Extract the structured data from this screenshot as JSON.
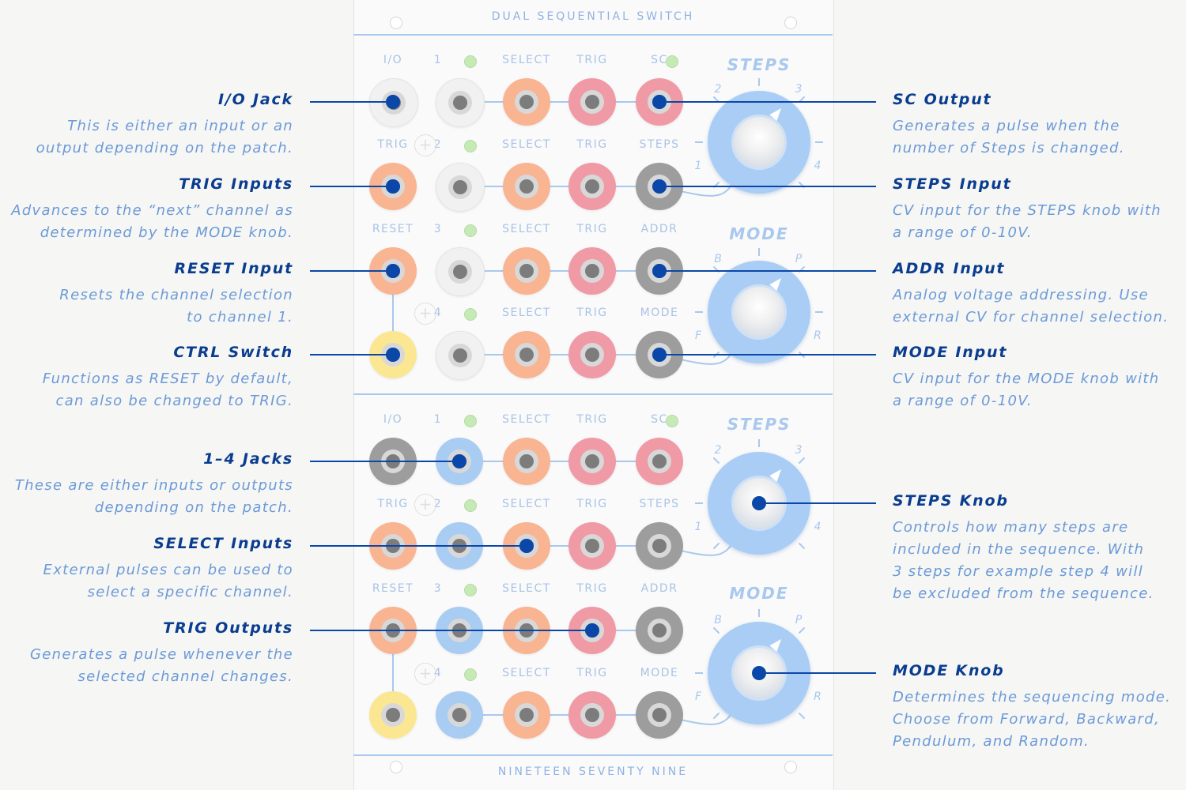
{
  "panel": {
    "title": "DUAL SEQUENTIAL SWITCH",
    "footer": "NINETEEN SEVENTY NINE"
  },
  "colors": {
    "accent": "#0b47a8",
    "description": "#6b9ad8",
    "panel_label": "#a9c3e6"
  },
  "sections": [
    {
      "rows": [
        [
          "I/O",
          "1",
          "SELECT",
          "TRIG",
          "SC"
        ],
        [
          "TRIG",
          "2",
          "SELECT",
          "TRIG",
          "STEPS"
        ],
        [
          "RESET",
          "3",
          "SELECT",
          "TRIG",
          "ADDR"
        ],
        [
          "",
          "4",
          "SELECT",
          "TRIG",
          "MODE"
        ]
      ],
      "steps_knob": {
        "title": "STEPS",
        "numbers": [
          "2",
          "3",
          "1",
          "4"
        ]
      },
      "mode_knob": {
        "title": "MODE",
        "letters": [
          "B",
          "P",
          "F",
          "R"
        ]
      }
    },
    {
      "rows": [
        [
          "I/O",
          "1",
          "SELECT",
          "TRIG",
          "SC"
        ],
        [
          "TRIG",
          "2",
          "SELECT",
          "TRIG",
          "STEPS"
        ],
        [
          "RESET",
          "3",
          "SELECT",
          "TRIG",
          "ADDR"
        ],
        [
          "",
          "4",
          "SELECT",
          "TRIG",
          "MODE"
        ]
      ],
      "steps_knob": {
        "title": "STEPS",
        "numbers": [
          "2",
          "3",
          "1",
          "4"
        ]
      },
      "mode_knob": {
        "title": "MODE",
        "letters": [
          "B",
          "P",
          "F",
          "R"
        ]
      }
    }
  ],
  "annotations": {
    "left": [
      {
        "title": "I/O Jack",
        "lines": [
          "This is either an input or an",
          "output depending on the patch."
        ]
      },
      {
        "title": "TRIG Inputs",
        "lines": [
          "Advances to the “next” channel as",
          "determined by the MODE knob."
        ]
      },
      {
        "title": "RESET Input",
        "lines": [
          "Resets the channel selection",
          "to channel 1."
        ]
      },
      {
        "title": "CTRL Switch",
        "lines": [
          "Functions as RESET by default,",
          "can also be changed to TRIG."
        ]
      },
      {
        "title": "1–4 Jacks",
        "lines": [
          "These are either inputs or outputs",
          "depending on the patch."
        ]
      },
      {
        "title": "SELECT Inputs",
        "lines": [
          "External pulses can be used to",
          "select a specific channel."
        ]
      },
      {
        "title": "TRIG Outputs",
        "lines": [
          "Generates a pulse whenever the",
          "selected channel changes."
        ]
      }
    ],
    "right": [
      {
        "title": "SC Output",
        "lines": [
          "Generates a pulse when the",
          "number of Steps is changed."
        ]
      },
      {
        "title": "STEPS Input",
        "lines": [
          "CV input for the STEPS knob with",
          "a range of 0-10V."
        ]
      },
      {
        "title": "ADDR Input",
        "lines": [
          "Analog voltage addressing. Use",
          "external CV for channel selection."
        ]
      },
      {
        "title": "MODE Input",
        "lines": [
          "CV input for the MODE knob with",
          "a range of 0-10V."
        ]
      },
      {
        "title": "STEPS Knob",
        "lines": [
          "Controls how many steps are",
          "included in the sequence. With",
          "3 steps for example step 4 will",
          "be excluded from the sequence."
        ]
      },
      {
        "title": "MODE Knob",
        "lines": [
          "Determines the sequencing mode.",
          "Choose from Forward, Backward,",
          "Pendulum, and Random."
        ]
      }
    ]
  }
}
